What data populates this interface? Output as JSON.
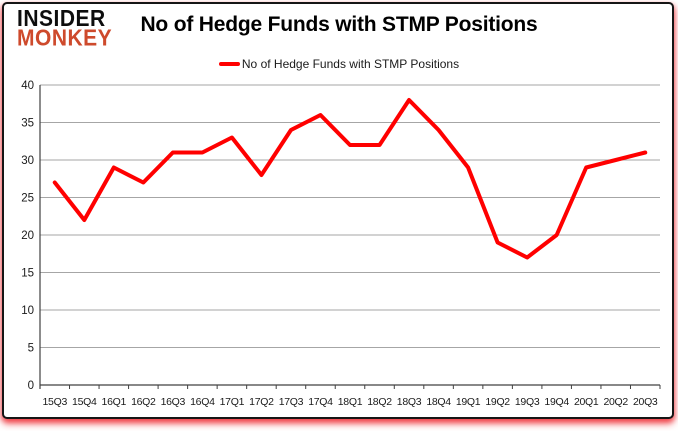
{
  "logo": {
    "line1": "INSIDER",
    "line2": "MONKEY"
  },
  "header": {
    "title": "No of Hedge Funds with STMP Positions"
  },
  "legend": {
    "label": "No of Hedge Funds with STMP Positions",
    "swatch_color": "#ff0000"
  },
  "chart_data": {
    "type": "line",
    "title": "No of Hedge Funds with STMP Positions",
    "categories": [
      "15Q3",
      "15Q4",
      "16Q1",
      "16Q2",
      "16Q3",
      "16Q4",
      "17Q1",
      "17Q2",
      "17Q3",
      "17Q4",
      "18Q1",
      "18Q2",
      "18Q3",
      "18Q4",
      "19Q1",
      "19Q2",
      "19Q3",
      "19Q4",
      "20Q1",
      "20Q2",
      "20Q3"
    ],
    "series": [
      {
        "name": "No of Hedge Funds with STMP Positions",
        "values": [
          27,
          22,
          29,
          27,
          31,
          31,
          33,
          28,
          34,
          36,
          32,
          32,
          38,
          34,
          29,
          19,
          17,
          20,
          29,
          30,
          31
        ]
      }
    ],
    "xlabel": "",
    "ylabel": "",
    "ylim": [
      0,
      40
    ],
    "ytick_step": 5,
    "grid": "horizontal-only",
    "legend_position": "top-center",
    "line_color": "#ff0000",
    "grid_color": "#a6a6a6",
    "axis_color": "#404040",
    "label_color": "#1a1a1a"
  }
}
